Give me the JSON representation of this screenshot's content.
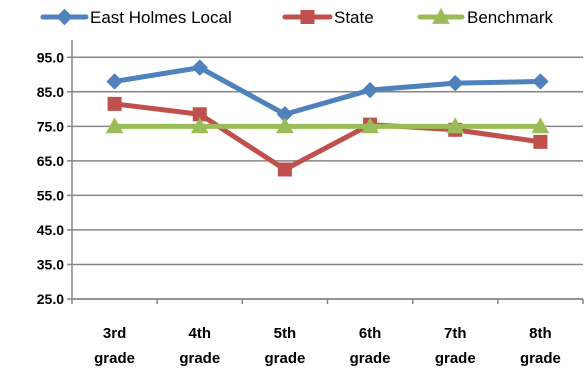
{
  "chart_data": {
    "type": "line",
    "categories": [
      "3rd grade",
      "4th grade",
      "5th grade",
      "6th grade",
      "7th grade",
      "8th grade"
    ],
    "category_lines": [
      [
        "3rd",
        "grade"
      ],
      [
        "4th",
        "grade"
      ],
      [
        "5th",
        "grade"
      ],
      [
        "6th",
        "grade"
      ],
      [
        "7th",
        "grade"
      ],
      [
        "8th",
        "grade"
      ]
    ],
    "series": [
      {
        "name": "East Holmes Local",
        "color": "#4F81BD",
        "marker": "diamond",
        "values": [
          88.0,
          92.0,
          78.5,
          85.5,
          87.5,
          88.0
        ]
      },
      {
        "name": "State",
        "color": "#C0504D",
        "marker": "square",
        "values": [
          81.5,
          78.5,
          62.5,
          75.5,
          74.0,
          70.5
        ]
      },
      {
        "name": "Benchmark",
        "color": "#9BBB59",
        "marker": "triangle",
        "values": [
          75.0,
          75.0,
          75.0,
          75.0,
          75.0,
          75.0
        ]
      }
    ],
    "yticks": [
      "95.0",
      "85.0",
      "75.0",
      "65.0",
      "55.0",
      "45.0",
      "35.0",
      "25.0"
    ],
    "ylim": [
      25,
      100
    ],
    "grid": true,
    "legend_position": "top",
    "title": "",
    "xlabel": "",
    "ylabel": ""
  }
}
